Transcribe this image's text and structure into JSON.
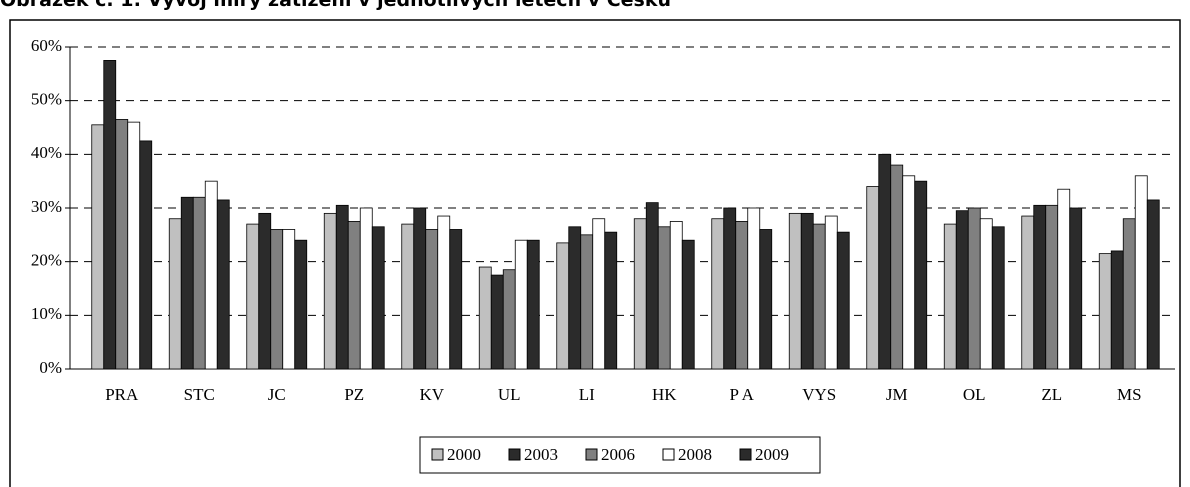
{
  "chart_data": {
    "type": "bar",
    "title": "Obrázek č. 1: Vývoj míry zatížení v jednotlivých letech v Česku",
    "categories": [
      "PRA",
      "STC",
      "JC",
      "PZ",
      "KV",
      "UL",
      "LI",
      "HK",
      "P A",
      "VYS",
      "JM",
      "OL",
      "ZL",
      "MS"
    ],
    "series": [
      {
        "name": "2000",
        "color": "#c0c0c0",
        "values": [
          45.5,
          28,
          27,
          29,
          27,
          19,
          23.5,
          28,
          28,
          29,
          34,
          27,
          28.5,
          21.5
        ]
      },
      {
        "name": "2003",
        "color": "#2b2b2b",
        "values": [
          57.5,
          32,
          29,
          30.5,
          30,
          17.5,
          26.5,
          31,
          30,
          29,
          40,
          29.5,
          30.5,
          22
        ]
      },
      {
        "name": "2006",
        "color": "#808080",
        "values": [
          46.5,
          32,
          26,
          27.5,
          26,
          18.5,
          25,
          26.5,
          27.5,
          27,
          38,
          30,
          30.5,
          28
        ]
      },
      {
        "name": "2008",
        "color": "#ffffff",
        "values": [
          46,
          35,
          26,
          30,
          28.5,
          24,
          28,
          27.5,
          30,
          28.5,
          36,
          28,
          33.5,
          36
        ]
      },
      {
        "name": "2009",
        "color": "#2b2b2b",
        "values": [
          42.5,
          31.5,
          24,
          26.5,
          26,
          24,
          25.5,
          24,
          26,
          25.5,
          35,
          26.5,
          30,
          31.5
        ]
      }
    ],
    "ylim": [
      0,
      60
    ],
    "yticks": [
      {
        "value": 0,
        "label": "0%"
      },
      {
        "value": 10,
        "label": "10%"
      },
      {
        "value": 20,
        "label": "20%"
      },
      {
        "value": 30,
        "label": "30%"
      },
      {
        "value": 40,
        "label": "40%"
      },
      {
        "value": 50,
        "label": "50%"
      },
      {
        "value": 60,
        "label": "60%"
      }
    ],
    "grid": true,
    "legend": "bottom"
  }
}
